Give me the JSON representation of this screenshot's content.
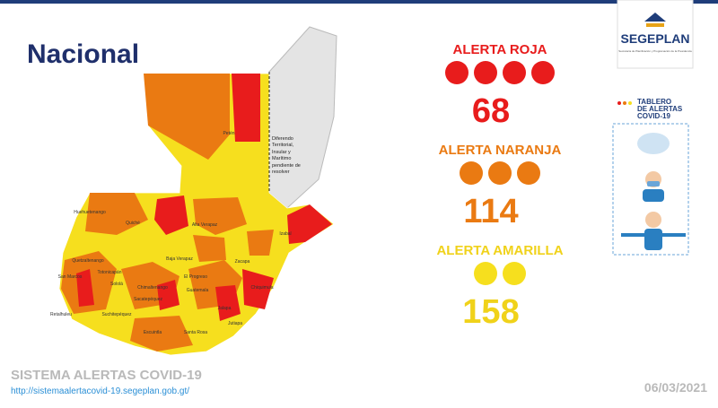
{
  "header": {
    "title": "Nacional",
    "logo": "SEGEPLAN",
    "logo_subtitle": "Secretaría de Planificación y Programación de la Presidencia"
  },
  "alerts": [
    {
      "label": "ALERTA ROJA",
      "count": 68
    },
    {
      "label": "ALERTA NARANJA",
      "count": 114
    },
    {
      "label": "ALERTA AMARILLA",
      "count": 158
    }
  ],
  "map": {
    "dispute_note": "Diferendo Territorial, Insular y Marítimo pendiente de resolver",
    "labels": [
      "Petén",
      "Huehuetenango",
      "Quiché",
      "Alta Verapaz",
      "Izabal",
      "Baja Verapaz",
      "Zacapa",
      "El Progreso",
      "Quetzaltenango",
      "Totonicapán",
      "San Marcos",
      "Sololá",
      "Chimaltenango",
      "Guatemala",
      "Sacatepéquez",
      "Jalapa",
      "Chiquimula",
      "Retalhuleu",
      "Suchitepéquez",
      "Escuintla",
      "Santa Rosa",
      "Jutiapa"
    ]
  },
  "tablero": {
    "lines": [
      "TABLERO",
      "DE ALERTAS",
      "COVID-19"
    ]
  },
  "footer": {
    "system": "SISTEMA ALERTAS COVID-19",
    "url": "http://sistemaalertacovid-19.segeplan.gob.gt/",
    "date": "06/03/2021"
  }
}
